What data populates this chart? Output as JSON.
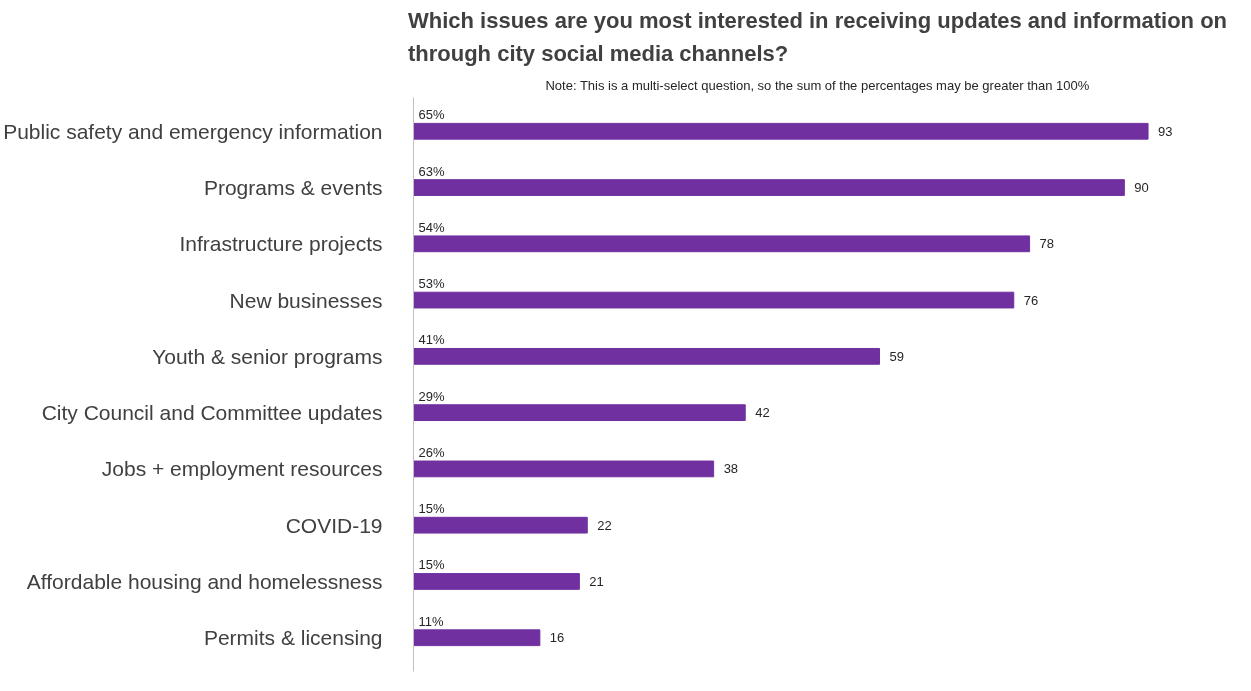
{
  "chart_data": {
    "type": "bar",
    "orientation": "horizontal",
    "title": "Which issues are you most interested in receiving updates and information on through city social media channels?",
    "subtitle": "Note: This is a multi-select question, so the sum of the percentages may be greater than 100%",
    "categories": [
      "Public safety and emergency information",
      "Programs & events",
      "Infrastructure projects",
      "New businesses",
      "Youth & senior programs",
      "City Council and Committee updates",
      "Jobs + employment resources",
      "COVID-19",
      "Affordable housing and homelessness",
      "Permits & licensing"
    ],
    "values": [
      93,
      90,
      78,
      76,
      59,
      42,
      38,
      22,
      21,
      16
    ],
    "color": "#7030a0",
    "data_labels": true,
    "tick_labels": "y",
    "grid": false,
    "annotations": [
      "65%",
      "63%",
      "54%",
      "53%",
      "41%",
      "29%",
      "26%",
      "15%",
      "15%",
      "11%"
    ]
  }
}
